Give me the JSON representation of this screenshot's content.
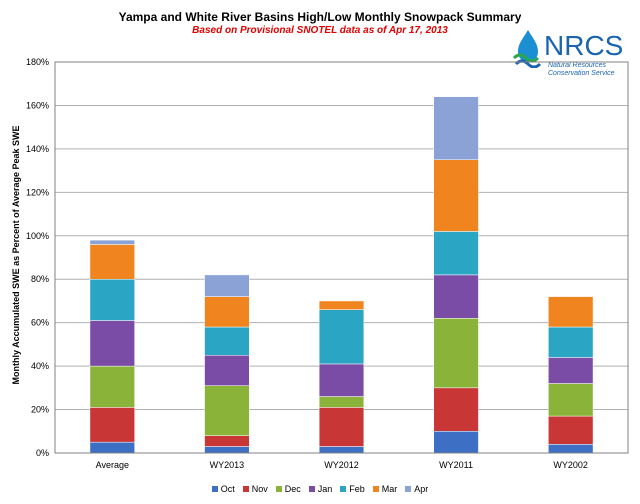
{
  "chart_data": {
    "type": "bar",
    "stacked": true,
    "title": "Yampa and White River Basins High/Low Monthly Snowpack Summary",
    "subtitle": "Based on Provisional SNOTEL data as of Apr 17, 2013",
    "ylabel": "Monthly Accumulated SWE as Percent of Average Peak SWE",
    "xlabel": "",
    "ylim": [
      0,
      180
    ],
    "ytick_step": 20,
    "ytick_format": "percent",
    "grid": true,
    "legend_position": "bottom",
    "categories": [
      "Average",
      "WY2013",
      "WY2012",
      "WY2011",
      "WY2002"
    ],
    "series": [
      {
        "name": "Oct",
        "color": "#3d6fc4",
        "values": [
          5,
          3,
          3,
          10,
          4
        ]
      },
      {
        "name": "Nov",
        "color": "#c83636",
        "values": [
          16,
          5,
          18,
          20,
          13
        ]
      },
      {
        "name": "Dec",
        "color": "#8ab33a",
        "values": [
          19,
          23,
          5,
          32,
          15
        ]
      },
      {
        "name": "Jan",
        "color": "#7a4ca6",
        "values": [
          21,
          14,
          15,
          20,
          12
        ]
      },
      {
        "name": "Feb",
        "color": "#2aa5c4",
        "values": [
          19,
          13,
          25,
          20,
          14
        ]
      },
      {
        "name": "Mar",
        "color": "#f0841e",
        "values": [
          16,
          14,
          4,
          33,
          14
        ]
      },
      {
        "name": "Apr",
        "color": "#8aa2d6",
        "values": [
          2,
          10,
          0,
          29,
          0
        ]
      }
    ]
  },
  "logo": {
    "text": "NRCS",
    "line1": "Natural Resources",
    "line2": "Conservation Service"
  }
}
